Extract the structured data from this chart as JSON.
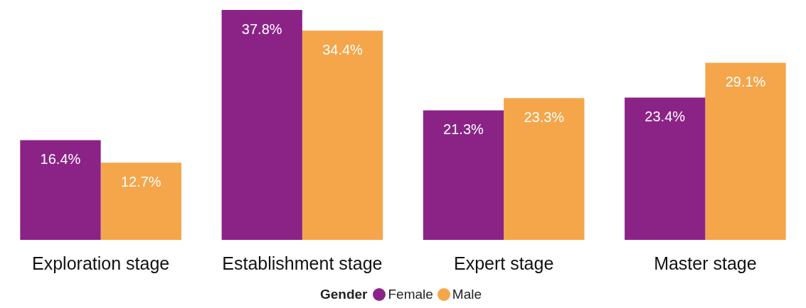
{
  "chart_data": {
    "type": "bar",
    "legend_title": "Gender",
    "legend": "bottom",
    "categories": [
      "Exploration stage",
      "Establishment stage",
      "Expert stage",
      "Master stage"
    ],
    "series": [
      {
        "name": "Female",
        "color": "#8b2387",
        "values": [
          16.4,
          37.8,
          21.3,
          23.4
        ],
        "value_labels": [
          "16.4%",
          "37.8%",
          "21.3%",
          "23.4%"
        ]
      },
      {
        "name": "Male",
        "color": "#f5a54a",
        "values": [
          12.7,
          34.4,
          23.3,
          29.1
        ],
        "value_labels": [
          "12.7%",
          "34.4%",
          "23.3%",
          "29.1%"
        ]
      }
    ]
  }
}
